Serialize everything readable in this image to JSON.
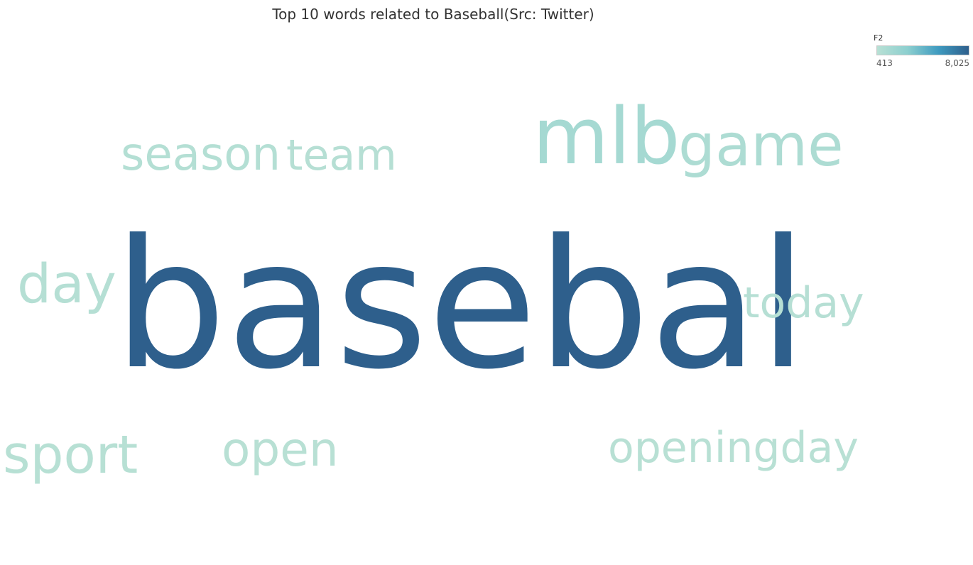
{
  "chart_data": {
    "type": "wordcloud",
    "title": "Top 10 words related to Baseball(Src: Twitter)",
    "legend": {
      "label": "F2",
      "min": 413,
      "max": 8025,
      "min_label": "413",
      "max_label": "8,025",
      "colors": [
        "#b8e0d4",
        "#8ccfcf",
        "#3f9bc0",
        "#2e5f8c"
      ],
      "placement": "top-right"
    },
    "words": [
      {
        "text": "basebal",
        "value": 8025
      },
      {
        "text": "mlb",
        "value": 1500
      },
      {
        "text": "game",
        "value": 1050
      },
      {
        "text": "season",
        "value": 620
      },
      {
        "text": "team",
        "value": 540
      },
      {
        "text": "day",
        "value": 560
      },
      {
        "text": "today",
        "value": 500
      },
      {
        "text": "sport",
        "value": 470
      },
      {
        "text": "open",
        "value": 440
      },
      {
        "text": "openingday",
        "value": 413
      }
    ]
  }
}
